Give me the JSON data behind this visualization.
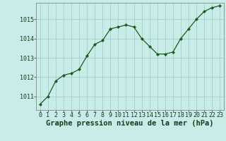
{
  "x": [
    0,
    1,
    2,
    3,
    4,
    5,
    6,
    7,
    8,
    9,
    10,
    11,
    12,
    13,
    14,
    15,
    16,
    17,
    18,
    19,
    20,
    21,
    22,
    23
  ],
  "y": [
    1010.6,
    1011.0,
    1011.8,
    1012.1,
    1012.2,
    1012.4,
    1013.1,
    1013.7,
    1013.9,
    1014.5,
    1014.6,
    1014.7,
    1014.6,
    1014.0,
    1013.6,
    1013.2,
    1013.2,
    1013.3,
    1014.0,
    1014.5,
    1015.0,
    1015.4,
    1015.6,
    1015.7
  ],
  "line_color": "#1a5c1a",
  "marker": "D",
  "marker_size": 2.2,
  "bg_color": "#c8ece8",
  "grid_color": "#a8ccc8",
  "xlabel": "Graphe pression niveau de la mer (hPa)",
  "xlabel_fontsize": 7.5,
  "ylabel_ticks": [
    1011,
    1012,
    1013,
    1014,
    1015
  ],
  "xlim": [
    -0.5,
    23.5
  ],
  "ylim": [
    1010.3,
    1015.85
  ],
  "tick_fontsize": 6.0,
  "spine_color": "#888888"
}
